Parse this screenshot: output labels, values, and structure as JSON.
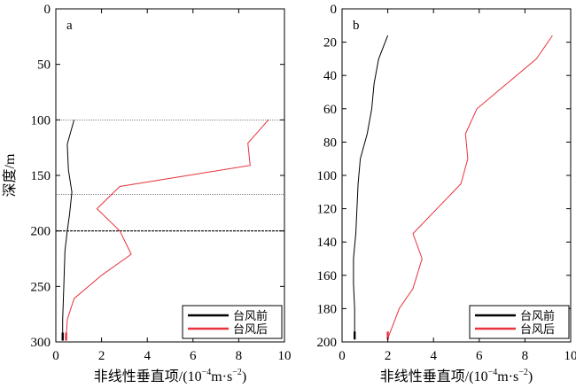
{
  "figure": {
    "ylabel": "深度/m",
    "xlabel_main": "非线性垂直项/(10",
    "xlabel_exp1": "−4",
    "xlabel_mid": "m·s",
    "xlabel_exp2": "−2",
    "xlabel_end": ")"
  },
  "chart_data": [
    {
      "type": "line",
      "panel_label": "a",
      "xlim": [
        0,
        10
      ],
      "ylim": [
        300,
        0
      ],
      "y_inverted": true,
      "xticks": [
        0,
        2,
        4,
        6,
        8,
        10
      ],
      "yticks": [
        0,
        50,
        100,
        150,
        200,
        250,
        300
      ],
      "xlabel": "非线性垂直项/(10⁻⁴m·s⁻²)",
      "ylabel": "深度/m",
      "legend_position": "bottom-right",
      "reference_lines": [
        {
          "y": 100,
          "style": "dotted"
        },
        {
          "y": 167,
          "style": "dotted"
        },
        {
          "y": 200,
          "style": "dashed"
        }
      ],
      "series": [
        {
          "name": "台风前",
          "color": "#000000",
          "points": [
            [
              0.8,
              100
            ],
            [
              0.5,
              122
            ],
            [
              0.55,
              145
            ],
            [
              0.7,
              165
            ],
            [
              0.6,
              185
            ],
            [
              0.5,
              200
            ],
            [
              0.4,
              218
            ],
            [
              0.35,
              250
            ],
            [
              0.3,
              280
            ],
            [
              0.3,
              298
            ]
          ]
        },
        {
          "name": "台风后",
          "color": "#e8323c",
          "points": [
            [
              9.3,
              100
            ],
            [
              8.4,
              121
            ],
            [
              8.5,
              141
            ],
            [
              2.8,
              160
            ],
            [
              1.8,
              180
            ],
            [
              2.8,
              200
            ],
            [
              3.3,
              221
            ],
            [
              2.0,
              240
            ],
            [
              0.8,
              261
            ],
            [
              0.5,
              280
            ],
            [
              0.45,
              298
            ]
          ]
        }
      ]
    },
    {
      "type": "line",
      "panel_label": "b",
      "xlim": [
        0,
        10
      ],
      "ylim": [
        200,
        0
      ],
      "y_inverted": true,
      "xticks": [
        0,
        2,
        4,
        6,
        8,
        10
      ],
      "yticks": [
        0,
        20,
        40,
        60,
        80,
        100,
        120,
        140,
        160,
        180,
        200
      ],
      "xlabel": "非线性垂直项/(10⁻⁴m·s⁻²)",
      "legend_position": "bottom-right",
      "series": [
        {
          "name": "台风前",
          "color": "#000000",
          "points": [
            [
              2.0,
              16
            ],
            [
              1.6,
              30
            ],
            [
              1.4,
              45
            ],
            [
              1.3,
              60
            ],
            [
              1.1,
              75
            ],
            [
              0.8,
              90
            ],
            [
              0.7,
              105
            ],
            [
              0.65,
              120
            ],
            [
              0.6,
              135
            ],
            [
              0.5,
              150
            ],
            [
              0.5,
              165
            ],
            [
              0.55,
              180
            ],
            [
              0.55,
              198
            ]
          ]
        },
        {
          "name": "台风后",
          "color": "#e8323c",
          "points": [
            [
              9.2,
              16
            ],
            [
              8.5,
              30
            ],
            [
              5.9,
              60
            ],
            [
              5.4,
              75
            ],
            [
              5.5,
              90
            ],
            [
              5.2,
              105
            ],
            [
              3.1,
              135
            ],
            [
              3.5,
              150
            ],
            [
              3.1,
              168
            ],
            [
              2.5,
              180
            ],
            [
              2.0,
              198
            ]
          ]
        }
      ]
    }
  ]
}
